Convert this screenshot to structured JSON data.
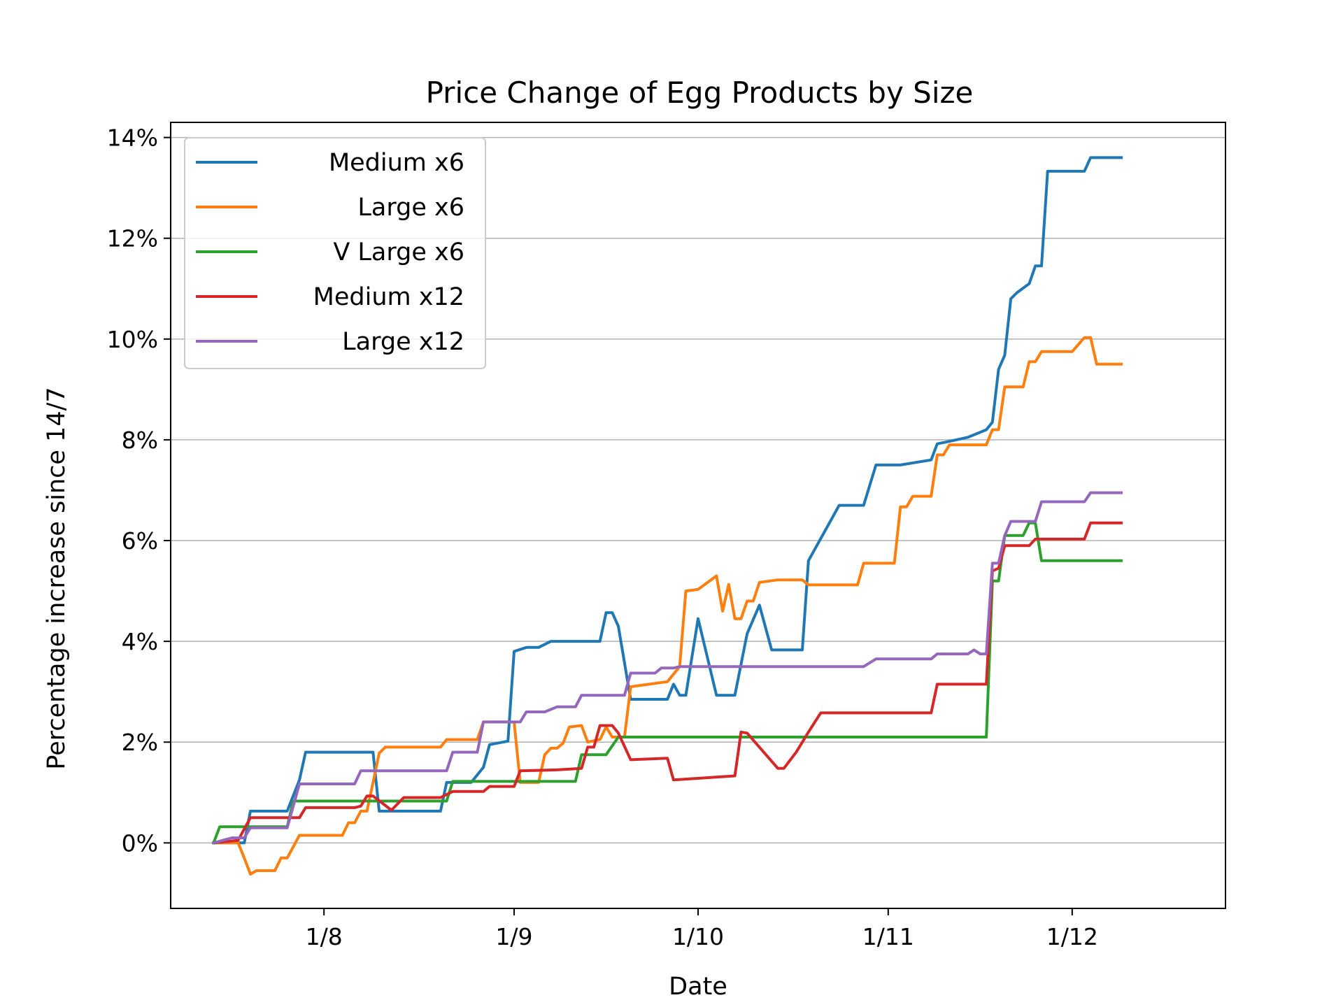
{
  "chart_data": {
    "type": "line",
    "title": "Price Change of Egg Products by Size",
    "xlabel": "Date",
    "ylabel": "Percentage increase since 14/7",
    "xlim": [
      "2022-07-07",
      "2022-12-26"
    ],
    "ylim": [
      -1.3,
      14.3
    ],
    "grid": "horizontal",
    "legend_position": "top-left",
    "x_ticks": [
      {
        "date": "2022-08-01",
        "label": "1/8"
      },
      {
        "date": "2022-09-01",
        "label": "1/9"
      },
      {
        "date": "2022-10-01",
        "label": "1/10"
      },
      {
        "date": "2022-11-01",
        "label": "1/11"
      },
      {
        "date": "2022-12-01",
        "label": "1/12"
      }
    ],
    "y_ticks": [
      {
        "value": 0,
        "label": "0%"
      },
      {
        "value": 2,
        "label": "2%"
      },
      {
        "value": 4,
        "label": "4%"
      },
      {
        "value": 6,
        "label": "6%"
      },
      {
        "value": 8,
        "label": "8%"
      },
      {
        "value": 10,
        "label": "10%"
      },
      {
        "value": 12,
        "label": "12%"
      },
      {
        "value": 14,
        "label": "14%"
      }
    ],
    "series": [
      {
        "name": "Medium x6",
        "color": "#1f77b4",
        "points": [
          [
            "2022-07-14",
            0
          ],
          [
            "2022-07-19",
            0
          ],
          [
            "2022-07-20",
            0.63
          ],
          [
            "2022-07-24",
            0.63
          ],
          [
            "2022-07-26",
            0.63
          ],
          [
            "2022-07-28",
            1.25
          ],
          [
            "2022-07-29",
            1.8
          ],
          [
            "2022-08-09",
            1.8
          ],
          [
            "2022-08-10",
            0.63
          ],
          [
            "2022-08-20",
            0.63
          ],
          [
            "2022-08-21",
            1.2
          ],
          [
            "2022-08-25",
            1.2
          ],
          [
            "2022-08-27",
            1.5
          ],
          [
            "2022-08-28",
            1.95
          ],
          [
            "2022-08-31",
            2.02
          ],
          [
            "2022-09-01",
            3.8
          ],
          [
            "2022-09-03",
            3.88
          ],
          [
            "2022-09-05",
            3.88
          ],
          [
            "2022-09-07",
            4.0
          ],
          [
            "2022-09-15",
            4.0
          ],
          [
            "2022-09-16",
            4.57
          ],
          [
            "2022-09-17",
            4.57
          ],
          [
            "2022-09-18",
            4.3
          ],
          [
            "2022-09-20",
            2.85
          ],
          [
            "2022-09-26",
            2.85
          ],
          [
            "2022-09-27",
            3.15
          ],
          [
            "2022-09-28",
            2.93
          ],
          [
            "2022-09-29",
            2.93
          ],
          [
            "2022-10-01",
            4.45
          ],
          [
            "2022-10-04",
            2.93
          ],
          [
            "2022-10-07",
            2.93
          ],
          [
            "2022-10-09",
            4.15
          ],
          [
            "2022-10-11",
            4.72
          ],
          [
            "2022-10-13",
            3.83
          ],
          [
            "2022-10-18",
            3.83
          ],
          [
            "2022-10-19",
            5.6
          ],
          [
            "2022-10-24",
            6.7
          ],
          [
            "2022-10-28",
            6.7
          ],
          [
            "2022-10-30",
            7.5
          ],
          [
            "2022-11-03",
            7.5
          ],
          [
            "2022-11-08",
            7.6
          ],
          [
            "2022-11-09",
            7.92
          ],
          [
            "2022-11-11",
            7.97
          ],
          [
            "2022-11-14",
            8.05
          ],
          [
            "2022-11-17",
            8.2
          ],
          [
            "2022-11-18",
            8.35
          ],
          [
            "2022-11-19",
            9.4
          ],
          [
            "2022-11-20",
            9.68
          ],
          [
            "2022-11-21",
            10.8
          ],
          [
            "2022-11-22",
            10.92
          ],
          [
            "2022-11-24",
            11.1
          ],
          [
            "2022-11-25",
            11.45
          ],
          [
            "2022-11-26",
            11.45
          ],
          [
            "2022-11-27",
            13.33
          ],
          [
            "2022-12-01",
            13.33
          ],
          [
            "2022-12-03",
            13.33
          ],
          [
            "2022-12-04",
            13.6
          ],
          [
            "2022-12-09",
            13.6
          ]
        ]
      },
      {
        "name": "Large x6",
        "color": "#ff7f0e",
        "points": [
          [
            "2022-07-14",
            0
          ],
          [
            "2022-07-18",
            0
          ],
          [
            "2022-07-19",
            -0.3
          ],
          [
            "2022-07-20",
            -0.62
          ],
          [
            "2022-07-21",
            -0.55
          ],
          [
            "2022-07-24",
            -0.55
          ],
          [
            "2022-07-25",
            -0.3
          ],
          [
            "2022-07-26",
            -0.3
          ],
          [
            "2022-07-28",
            0.15
          ],
          [
            "2022-08-04",
            0.15
          ],
          [
            "2022-08-05",
            0.4
          ],
          [
            "2022-08-06",
            0.4
          ],
          [
            "2022-08-07",
            0.63
          ],
          [
            "2022-08-08",
            0.63
          ],
          [
            "2022-08-09",
            1.2
          ],
          [
            "2022-08-10",
            1.78
          ],
          [
            "2022-08-11",
            1.9
          ],
          [
            "2022-08-20",
            1.9
          ],
          [
            "2022-08-21",
            2.05
          ],
          [
            "2022-08-26",
            2.05
          ],
          [
            "2022-08-27",
            2.4
          ],
          [
            "2022-09-01",
            2.4
          ],
          [
            "2022-09-02",
            1.2
          ],
          [
            "2022-09-05",
            1.2
          ],
          [
            "2022-09-06",
            1.75
          ],
          [
            "2022-09-07",
            1.88
          ],
          [
            "2022-09-08",
            1.88
          ],
          [
            "2022-09-09",
            1.98
          ],
          [
            "2022-09-10",
            2.3
          ],
          [
            "2022-09-12",
            2.33
          ],
          [
            "2022-09-13",
            2.0
          ],
          [
            "2022-09-15",
            2.05
          ],
          [
            "2022-09-16",
            2.3
          ],
          [
            "2022-09-17",
            2.1
          ],
          [
            "2022-09-19",
            2.1
          ],
          [
            "2022-09-20",
            3.1
          ],
          [
            "2022-09-26",
            3.2
          ],
          [
            "2022-09-27",
            3.35
          ],
          [
            "2022-09-28",
            3.5
          ],
          [
            "2022-09-29",
            5.0
          ],
          [
            "2022-10-01",
            5.03
          ],
          [
            "2022-10-04",
            5.3
          ],
          [
            "2022-10-05",
            4.6
          ],
          [
            "2022-10-06",
            5.13
          ],
          [
            "2022-10-07",
            4.45
          ],
          [
            "2022-10-08",
            4.45
          ],
          [
            "2022-10-09",
            4.8
          ],
          [
            "2022-10-10",
            4.8
          ],
          [
            "2022-10-11",
            5.17
          ],
          [
            "2022-10-14",
            5.22
          ],
          [
            "2022-10-18",
            5.22
          ],
          [
            "2022-10-19",
            5.12
          ],
          [
            "2022-10-27",
            5.12
          ],
          [
            "2022-10-28",
            5.55
          ],
          [
            "2022-11-02",
            5.55
          ],
          [
            "2022-11-03",
            6.67
          ],
          [
            "2022-11-04",
            6.67
          ],
          [
            "2022-11-05",
            6.88
          ],
          [
            "2022-11-08",
            6.88
          ],
          [
            "2022-11-09",
            7.7
          ],
          [
            "2022-11-10",
            7.7
          ],
          [
            "2022-11-11",
            7.9
          ],
          [
            "2022-11-17",
            7.9
          ],
          [
            "2022-11-18",
            8.2
          ],
          [
            "2022-11-19",
            8.2
          ],
          [
            "2022-11-20",
            9.05
          ],
          [
            "2022-11-23",
            9.05
          ],
          [
            "2022-11-24",
            9.55
          ],
          [
            "2022-11-25",
            9.55
          ],
          [
            "2022-11-26",
            9.75
          ],
          [
            "2022-12-01",
            9.75
          ],
          [
            "2022-12-03",
            10.03
          ],
          [
            "2022-12-04",
            10.03
          ],
          [
            "2022-12-05",
            9.5
          ],
          [
            "2022-12-09",
            9.5
          ]
        ]
      },
      {
        "name": "V Large x6",
        "color": "#2ca02c",
        "points": [
          [
            "2022-07-14",
            0
          ],
          [
            "2022-07-15",
            0.32
          ],
          [
            "2022-07-26",
            0.32
          ],
          [
            "2022-07-27",
            0.83
          ],
          [
            "2022-08-21",
            0.83
          ],
          [
            "2022-08-22",
            1.22
          ],
          [
            "2022-09-11",
            1.22
          ],
          [
            "2022-09-12",
            1.75
          ],
          [
            "2022-09-16",
            1.75
          ],
          [
            "2022-09-18",
            2.1
          ],
          [
            "2022-11-17",
            2.1
          ],
          [
            "2022-11-18",
            5.2
          ],
          [
            "2022-11-19",
            5.2
          ],
          [
            "2022-11-20",
            6.1
          ],
          [
            "2022-11-23",
            6.1
          ],
          [
            "2022-11-24",
            6.35
          ],
          [
            "2022-11-25",
            6.35
          ],
          [
            "2022-11-26",
            5.6
          ],
          [
            "2022-12-09",
            5.6
          ]
        ]
      },
      {
        "name": "Medium x12",
        "color": "#d62728",
        "points": [
          [
            "2022-07-14",
            0
          ],
          [
            "2022-07-18",
            0.05
          ],
          [
            "2022-07-20",
            0.5
          ],
          [
            "2022-07-26",
            0.5
          ],
          [
            "2022-07-28",
            0.5
          ],
          [
            "2022-07-29",
            0.7
          ],
          [
            "2022-08-06",
            0.7
          ],
          [
            "2022-08-07",
            0.73
          ],
          [
            "2022-08-08",
            0.93
          ],
          [
            "2022-08-09",
            0.93
          ],
          [
            "2022-08-12",
            0.65
          ],
          [
            "2022-08-14",
            0.9
          ],
          [
            "2022-08-20",
            0.9
          ],
          [
            "2022-08-22",
            1.02
          ],
          [
            "2022-08-27",
            1.02
          ],
          [
            "2022-08-28",
            1.12
          ],
          [
            "2022-09-01",
            1.12
          ],
          [
            "2022-09-02",
            1.43
          ],
          [
            "2022-09-08",
            1.45
          ],
          [
            "2022-09-12",
            1.48
          ],
          [
            "2022-09-13",
            1.9
          ],
          [
            "2022-09-14",
            1.9
          ],
          [
            "2022-09-15",
            2.33
          ],
          [
            "2022-09-16",
            2.33
          ],
          [
            "2022-09-17",
            2.33
          ],
          [
            "2022-09-18",
            2.18
          ],
          [
            "2022-09-20",
            1.65
          ],
          [
            "2022-09-26",
            1.68
          ],
          [
            "2022-09-27",
            1.25
          ],
          [
            "2022-10-07",
            1.33
          ],
          [
            "2022-10-08",
            2.2
          ],
          [
            "2022-10-09",
            2.18
          ],
          [
            "2022-10-14",
            1.48
          ],
          [
            "2022-10-15",
            1.48
          ],
          [
            "2022-10-17",
            1.8
          ],
          [
            "2022-10-19",
            2.2
          ],
          [
            "2022-10-21",
            2.58
          ],
          [
            "2022-11-07",
            2.58
          ],
          [
            "2022-11-08",
            2.58
          ],
          [
            "2022-11-09",
            3.15
          ],
          [
            "2022-11-17",
            3.15
          ],
          [
            "2022-11-18",
            5.4
          ],
          [
            "2022-11-19",
            5.45
          ],
          [
            "2022-11-20",
            5.9
          ],
          [
            "2022-11-24",
            5.9
          ],
          [
            "2022-11-25",
            6.03
          ],
          [
            "2022-12-03",
            6.03
          ],
          [
            "2022-12-04",
            6.35
          ],
          [
            "2022-12-09",
            6.35
          ]
        ]
      },
      {
        "name": "Large x12",
        "color": "#9467bd",
        "points": [
          [
            "2022-07-14",
            0
          ],
          [
            "2022-07-17",
            0.1
          ],
          [
            "2022-07-19",
            0.1
          ],
          [
            "2022-07-20",
            0.3
          ],
          [
            "2022-07-24",
            0.3
          ],
          [
            "2022-07-26",
            0.3
          ],
          [
            "2022-07-28",
            1.17
          ],
          [
            "2022-08-06",
            1.17
          ],
          [
            "2022-08-07",
            1.43
          ],
          [
            "2022-08-21",
            1.43
          ],
          [
            "2022-08-22",
            1.8
          ],
          [
            "2022-08-26",
            1.8
          ],
          [
            "2022-08-27",
            2.4
          ],
          [
            "2022-09-02",
            2.4
          ],
          [
            "2022-09-03",
            2.6
          ],
          [
            "2022-09-06",
            2.6
          ],
          [
            "2022-09-08",
            2.7
          ],
          [
            "2022-09-11",
            2.7
          ],
          [
            "2022-09-12",
            2.93
          ],
          [
            "2022-09-19",
            2.93
          ],
          [
            "2022-09-20",
            3.37
          ],
          [
            "2022-09-24",
            3.37
          ],
          [
            "2022-09-25",
            3.47
          ],
          [
            "2022-09-27",
            3.47
          ],
          [
            "2022-09-28",
            3.5
          ],
          [
            "2022-10-28",
            3.5
          ],
          [
            "2022-10-30",
            3.65
          ],
          [
            "2022-11-08",
            3.65
          ],
          [
            "2022-11-09",
            3.75
          ],
          [
            "2022-11-14",
            3.75
          ],
          [
            "2022-11-15",
            3.83
          ],
          [
            "2022-11-16",
            3.75
          ],
          [
            "2022-11-17",
            3.75
          ],
          [
            "2022-11-18",
            5.55
          ],
          [
            "2022-11-19",
            5.55
          ],
          [
            "2022-11-20",
            6.1
          ],
          [
            "2022-11-21",
            6.38
          ],
          [
            "2022-11-25",
            6.38
          ],
          [
            "2022-11-26",
            6.77
          ],
          [
            "2022-12-03",
            6.77
          ],
          [
            "2022-12-04",
            6.95
          ],
          [
            "2022-12-09",
            6.95
          ]
        ]
      }
    ]
  }
}
